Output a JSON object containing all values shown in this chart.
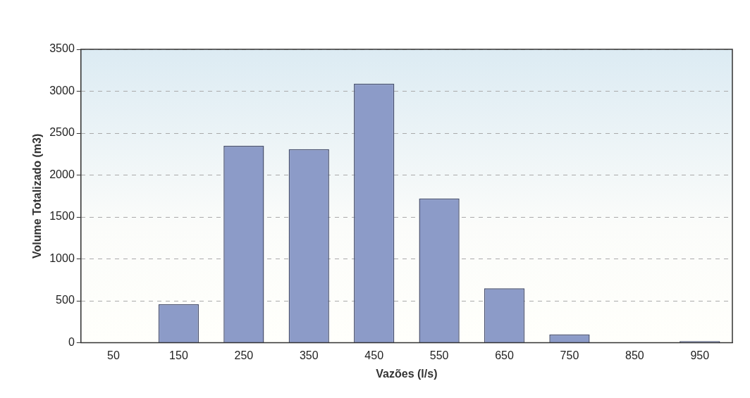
{
  "chart_data": {
    "type": "bar",
    "xlabel": "Vazões (l/s)",
    "ylabel": "Volume Totalizado (m3)",
    "categories": [
      "50",
      "150",
      "250",
      "350",
      "450",
      "550",
      "650",
      "750",
      "850",
      "950"
    ],
    "values": [
      0,
      460,
      2350,
      2310,
      3090,
      1720,
      650,
      100,
      0,
      20
    ],
    "color": "#8c9bc8",
    "ylim": [
      0,
      3500
    ],
    "yticks": [
      0,
      500,
      1000,
      1500,
      2000,
      2500,
      3000,
      3500
    ],
    "grid": "y",
    "legend": false
  }
}
